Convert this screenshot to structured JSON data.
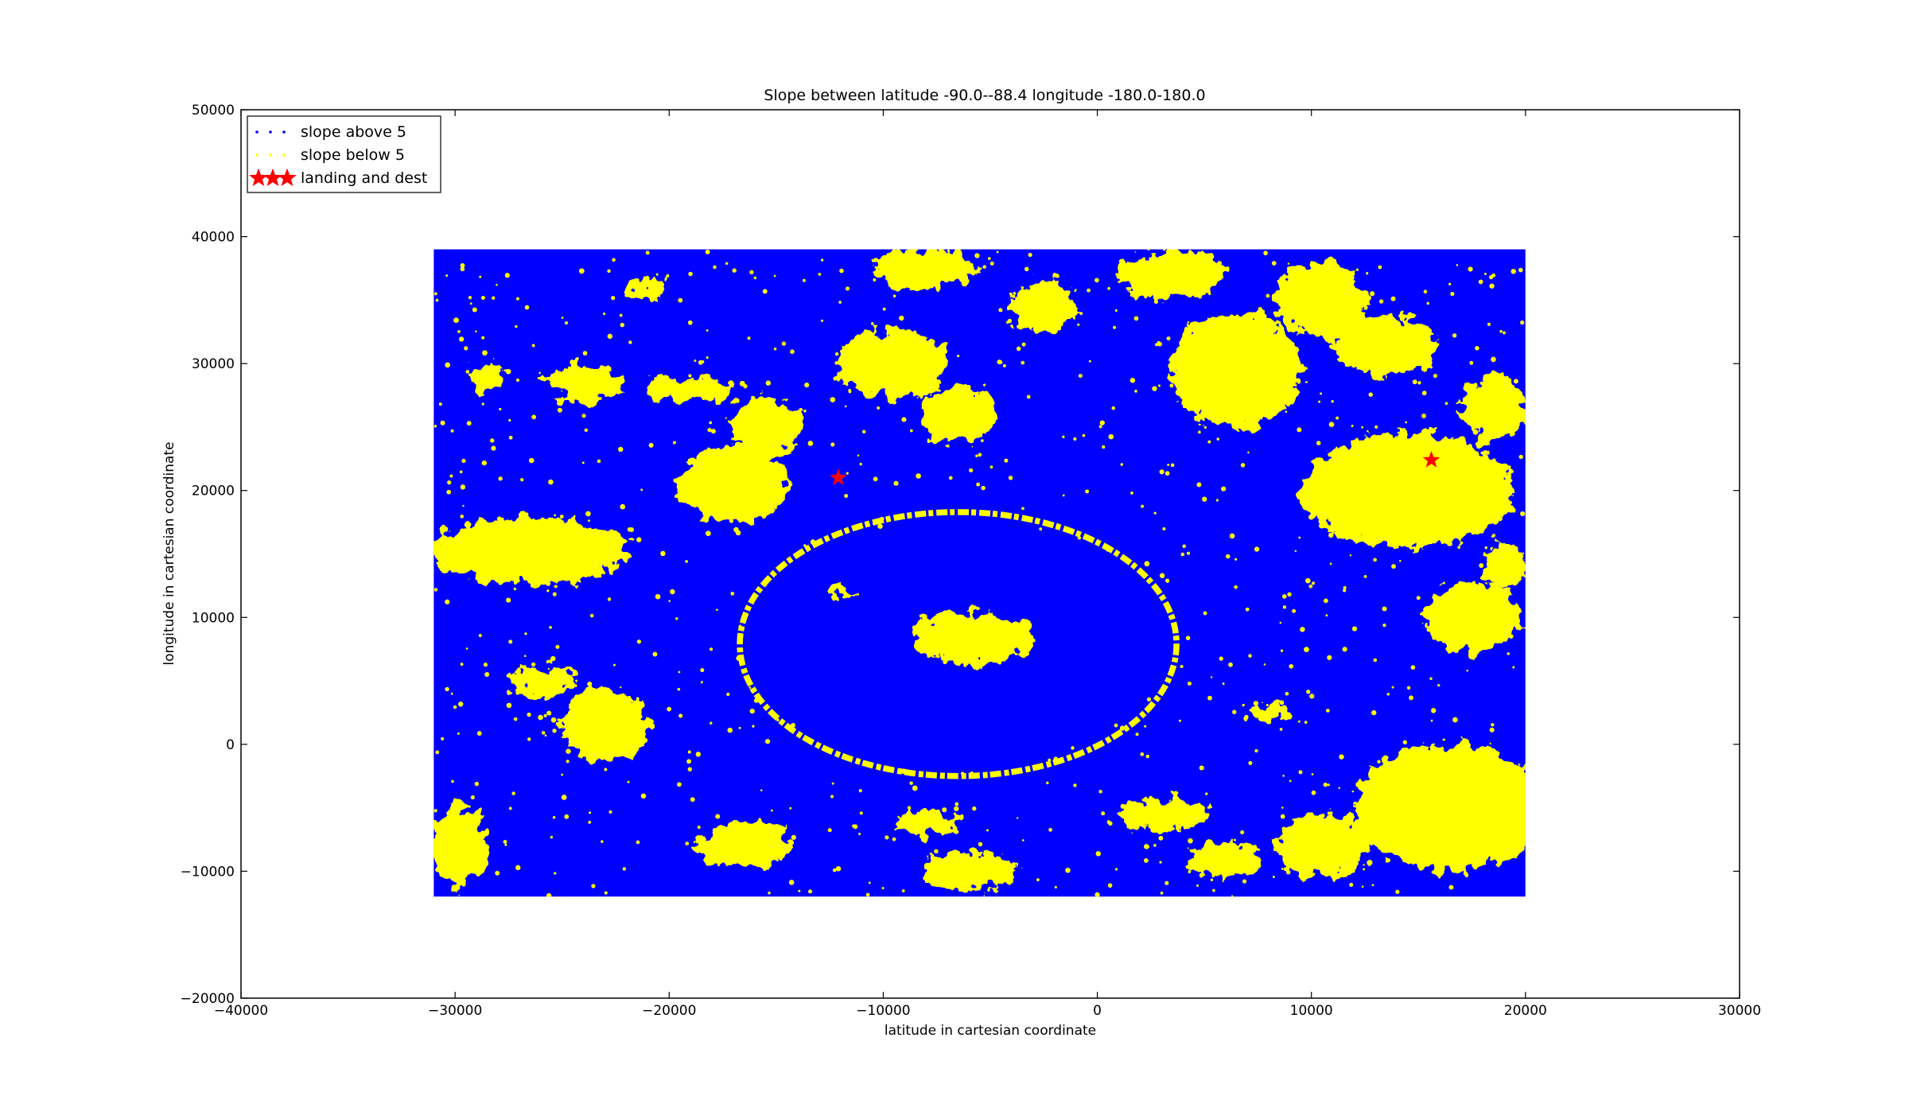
{
  "chart_data": {
    "type": "scatter",
    "title": "Slope between latitude -90.0--88.4 longitude -180.0-180.0",
    "xlabel": "latitude in cartesian coordinate",
    "ylabel": "longitude in cartesian coordinate",
    "xlim": [
      -40000,
      30000
    ],
    "ylim": [
      -20000,
      50000
    ],
    "xticks": [
      -40000,
      -30000,
      -20000,
      -10000,
      0,
      10000,
      20000,
      30000
    ],
    "yticks": [
      -20000,
      -10000,
      0,
      10000,
      20000,
      30000,
      40000,
      50000
    ],
    "xtick_labels": [
      "−40000",
      "−30000",
      "−20000",
      "−10000",
      "0",
      "10000",
      "20000",
      "30000"
    ],
    "ytick_labels": [
      "−20000",
      "−10000",
      "0",
      "10000",
      "20000",
      "30000",
      "40000",
      "50000"
    ],
    "grid": false,
    "legend_position": "top-left",
    "data_extent": {
      "x": [
        -31000,
        20000
      ],
      "y": [
        -12000,
        39000
      ]
    },
    "series": [
      {
        "name": "slope above 5",
        "color": "#0000ff",
        "marker": "point",
        "coverage": "background"
      },
      {
        "name": "slope below 5",
        "color": "#ffff00",
        "marker": "point",
        "coverage": "patches"
      },
      {
        "name": "landing and dest",
        "color": "#ff0000",
        "marker": "star",
        "points": [
          {
            "x": -12100,
            "y": 21000
          },
          {
            "x": 15600,
            "y": 22400
          }
        ]
      }
    ],
    "yellow_regions": [
      {
        "cx": -5800,
        "cy": 8400,
        "rx": 2800,
        "ry": 2100
      },
      {
        "cx": -26500,
        "cy": 15200,
        "rx": 4700,
        "ry": 2600
      },
      {
        "cx": -17000,
        "cy": 20500,
        "rx": 2600,
        "ry": 3000
      },
      {
        "cx": -15500,
        "cy": 25000,
        "rx": 1600,
        "ry": 2400
      },
      {
        "cx": -24000,
        "cy": 28500,
        "rx": 1800,
        "ry": 1400
      },
      {
        "cx": -19000,
        "cy": 28000,
        "rx": 2000,
        "ry": 1000
      },
      {
        "cx": -9500,
        "cy": 30000,
        "rx": 2600,
        "ry": 2800
      },
      {
        "cx": -6500,
        "cy": 26000,
        "rx": 1800,
        "ry": 2200
      },
      {
        "cx": -8000,
        "cy": 37500,
        "rx": 2400,
        "ry": 1600
      },
      {
        "cx": -2500,
        "cy": 34500,
        "rx": 1600,
        "ry": 2000
      },
      {
        "cx": 3500,
        "cy": 37000,
        "rx": 2600,
        "ry": 1900
      },
      {
        "cx": 6500,
        "cy": 29500,
        "rx": 3000,
        "ry": 4500
      },
      {
        "cx": 10500,
        "cy": 35000,
        "rx": 2200,
        "ry": 3000
      },
      {
        "cx": 13500,
        "cy": 31500,
        "rx": 2400,
        "ry": 2400
      },
      {
        "cx": 14500,
        "cy": 20000,
        "rx": 5000,
        "ry": 4500
      },
      {
        "cx": 18500,
        "cy": 26500,
        "rx": 1600,
        "ry": 2600
      },
      {
        "cx": 17500,
        "cy": 10000,
        "rx": 2200,
        "ry": 2800
      },
      {
        "cx": 16500,
        "cy": -5000,
        "rx": 4500,
        "ry": 5000
      },
      {
        "cx": 10500,
        "cy": -8000,
        "rx": 2200,
        "ry": 2600
      },
      {
        "cx": -23000,
        "cy": 1500,
        "rx": 2000,
        "ry": 3000
      },
      {
        "cx": -26000,
        "cy": 5000,
        "rx": 1600,
        "ry": 1000
      },
      {
        "cx": -29800,
        "cy": -8000,
        "rx": 1300,
        "ry": 3200
      },
      {
        "cx": -16500,
        "cy": -8000,
        "rx": 2200,
        "ry": 1800
      },
      {
        "cx": -8000,
        "cy": -6200,
        "rx": 1400,
        "ry": 900
      },
      {
        "cx": -6000,
        "cy": -10000,
        "rx": 2200,
        "ry": 1500
      },
      {
        "cx": 3000,
        "cy": -5500,
        "rx": 2200,
        "ry": 1200
      },
      {
        "cx": 6000,
        "cy": -9000,
        "rx": 1800,
        "ry": 1400
      },
      {
        "cx": -28500,
        "cy": 29000,
        "rx": 800,
        "ry": 1200
      },
      {
        "cx": 19000,
        "cy": 14000,
        "rx": 1000,
        "ry": 1800
      },
      {
        "cx": -21000,
        "cy": 36000,
        "rx": 900,
        "ry": 800
      },
      {
        "cx": -12000,
        "cy": 12000,
        "rx": 700,
        "ry": 500
      },
      {
        "cx": 8000,
        "cy": 2500,
        "rx": 1200,
        "ry": 700
      }
    ],
    "crater_rim": {
      "cx": -6500,
      "cy": 7900,
      "rx": 10200,
      "ry": 10400,
      "width": 280
    }
  }
}
